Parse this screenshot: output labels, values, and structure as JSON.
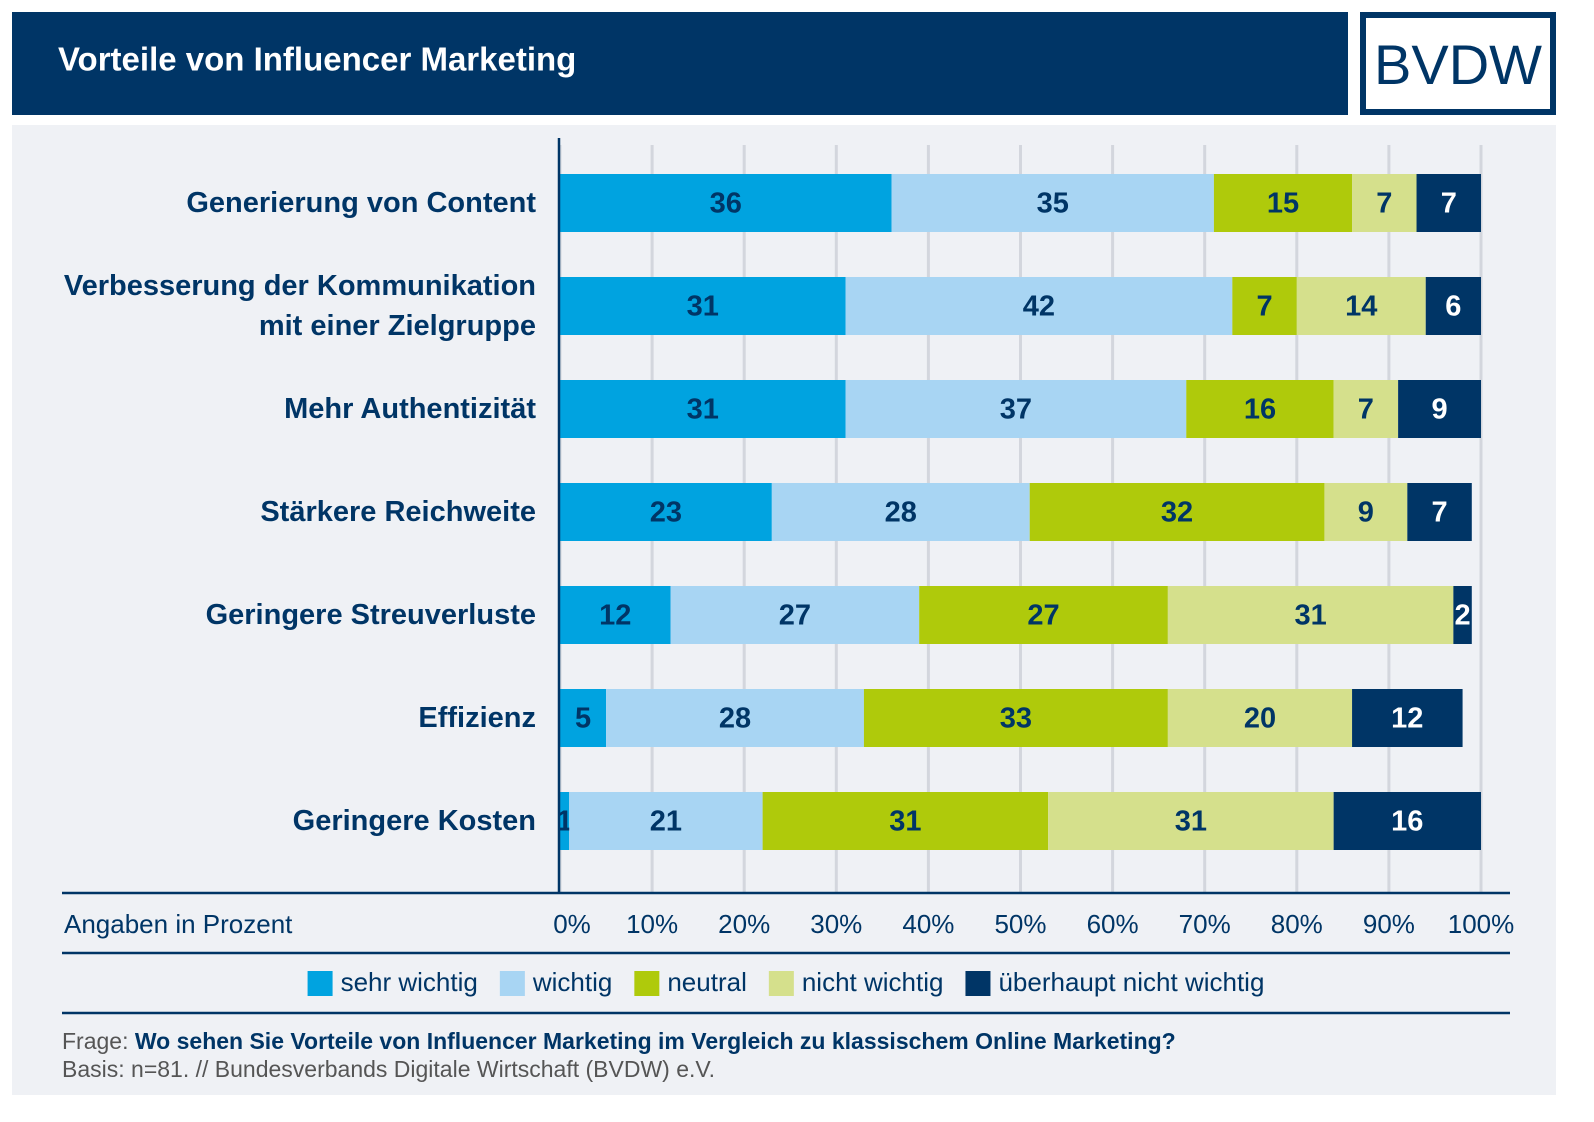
{
  "chart_data": {
    "type": "stacked-barh",
    "title": "Vorteile von Influencer Marketing",
    "logo": "BVDW",
    "categories": [
      "Generierung von Content",
      "Verbesserung der Kommunikation mit einer Zielgruppe",
      "Mehr Authentizität",
      "Stärkere Reichweite",
      "Geringere Streuverluste",
      "Effizienz",
      "Geringere Kosten"
    ],
    "series": [
      {
        "name": "sehr wichtig",
        "color": "#00a3e0",
        "values": [
          36,
          31,
          31,
          23,
          12,
          5,
          1
        ]
      },
      {
        "name": "wichtig",
        "color": "#a8d5f3",
        "values": [
          35,
          42,
          37,
          28,
          27,
          28,
          21
        ]
      },
      {
        "name": "neutral",
        "color": "#afca0b",
        "values": [
          15,
          7,
          16,
          32,
          27,
          33,
          31
        ]
      },
      {
        "name": "nicht wichtig",
        "color": "#d5e08c",
        "values": [
          7,
          14,
          7,
          9,
          31,
          20,
          31
        ]
      },
      {
        "name": "überhaupt nicht wichtig",
        "color": "#003566",
        "values": [
          7,
          6,
          9,
          7,
          2,
          12,
          16
        ]
      }
    ],
    "xlabel": "Angaben in Prozent",
    "xlim": [
      0,
      100
    ],
    "xticks": [
      {
        "value": 0,
        "label": "0%"
      },
      {
        "value": 10,
        "label": "10%"
      },
      {
        "value": 20,
        "label": "20%"
      },
      {
        "value": 30,
        "label": "30%"
      },
      {
        "value": 40,
        "label": "40%"
      },
      {
        "value": 50,
        "label": "50%"
      },
      {
        "value": 60,
        "label": "60%"
      },
      {
        "value": 70,
        "label": "70%"
      },
      {
        "value": 80,
        "label": "80%"
      },
      {
        "value": 90,
        "label": "90%"
      },
      {
        "value": 100,
        "label": "100%"
      }
    ],
    "grid": true,
    "question_label": "Frage:",
    "question": "Wo sehen Sie Vorteile von Influencer Marketing im Vergleich zu klassischem Online Marketing?",
    "source": "Basis: n=81. // Bundesverbands Digitale Wirtschaft (BVDW) e.V."
  }
}
